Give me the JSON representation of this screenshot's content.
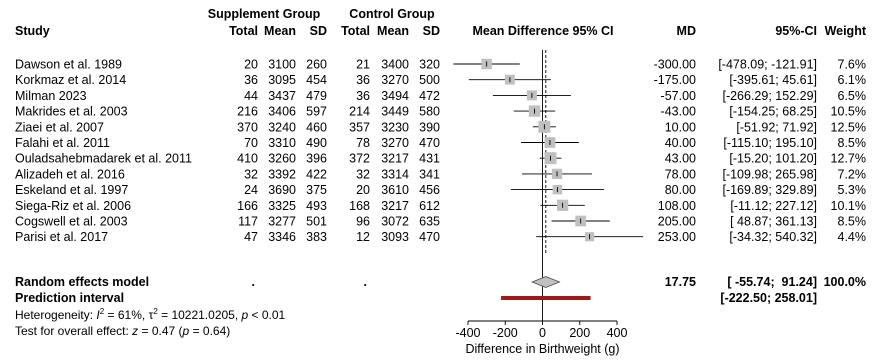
{
  "chart_data": {
    "type": "forest",
    "headers": {
      "study": "Study",
      "supplement_group": "Supplement Group",
      "control_group": "Control Group",
      "total": "Total",
      "mean": "Mean",
      "sd": "SD",
      "effect_col": "Mean Difference 95% CI",
      "md": "MD",
      "ci": "95%-CI",
      "weight": "Weight"
    },
    "studies": [
      {
        "study": "Dawson et al. 1989",
        "s_total": "20",
        "s_mean": "3100",
        "s_sd": "260",
        "c_total": "21",
        "c_mean": "3400",
        "c_sd": "320",
        "md_text": "-300.00",
        "ci_text": "[-478.09; -121.91]",
        "weight_text": "7.6%",
        "md": -300.0,
        "lo": -478.09,
        "hi": -121.91,
        "weight": 7.6
      },
      {
        "study": "Korkmaz et al. 2014",
        "s_total": "36",
        "s_mean": "3095",
        "s_sd": "454",
        "c_total": "36",
        "c_mean": "3270",
        "c_sd": "500",
        "md_text": "-175.00",
        "ci_text": "[-395.61; 45.61]",
        "weight_text": "6.1%",
        "md": -175.0,
        "lo": -395.61,
        "hi": 45.61,
        "weight": 6.1
      },
      {
        "study": "Milman 2023",
        "s_total": "44",
        "s_mean": "3437",
        "s_sd": "479",
        "c_total": "36",
        "c_mean": "3494",
        "c_sd": "472",
        "md_text": "-57.00",
        "ci_text": "[-266.29; 152.29]",
        "weight_text": "6.5%",
        "md": -57.0,
        "lo": -266.29,
        "hi": 152.29,
        "weight": 6.5
      },
      {
        "study": "Makrides et al. 2003",
        "s_total": "216",
        "s_mean": "3406",
        "s_sd": "597",
        "c_total": "214",
        "c_mean": "3449",
        "c_sd": "580",
        "md_text": "-43.00",
        "ci_text": "[-154.25; 68.25]",
        "weight_text": "10.5%",
        "md": -43.0,
        "lo": -154.25,
        "hi": 68.25,
        "weight": 10.5
      },
      {
        "study": "Ziaei et al. 2007",
        "s_total": "370",
        "s_mean": "3240",
        "s_sd": "460",
        "c_total": "357",
        "c_mean": "3230",
        "c_sd": "390",
        "md_text": "10.00",
        "ci_text": "[-51.92; 71.92]",
        "weight_text": "12.5%",
        "md": 10.0,
        "lo": -51.92,
        "hi": 71.92,
        "weight": 12.5
      },
      {
        "study": "Falahi et al. 2011",
        "s_total": "70",
        "s_mean": "3310",
        "s_sd": "490",
        "c_total": "78",
        "c_mean": "3270",
        "c_sd": "470",
        "md_text": "40.00",
        "ci_text": "[-115.10; 195.10]",
        "weight_text": "8.5%",
        "md": 40.0,
        "lo": -115.1,
        "hi": 195.1,
        "weight": 8.5
      },
      {
        "study": "Ouladsahebmadarek et al. 2011",
        "s_total": "410",
        "s_mean": "3260",
        "s_sd": "396",
        "c_total": "372",
        "c_mean": "3217",
        "c_sd": "431",
        "md_text": "43.00",
        "ci_text": "[-15.20; 101.20]",
        "weight_text": "12.7%",
        "md": 43.0,
        "lo": -15.2,
        "hi": 101.2,
        "weight": 12.7
      },
      {
        "study": "Alizadeh et al. 2016",
        "s_total": "32",
        "s_mean": "3392",
        "s_sd": "422",
        "c_total": "32",
        "c_mean": "3314",
        "c_sd": "341",
        "md_text": "78.00",
        "ci_text": "[-109.98; 265.98]",
        "weight_text": "7.2%",
        "md": 78.0,
        "lo": -109.98,
        "hi": 265.98,
        "weight": 7.2
      },
      {
        "study": "Eskeland et al. 1997",
        "s_total": "24",
        "s_mean": "3690",
        "s_sd": "375",
        "c_total": "20",
        "c_mean": "3610",
        "c_sd": "456",
        "md_text": "80.00",
        "ci_text": "[-169.89; 329.89]",
        "weight_text": "5.3%",
        "md": 80.0,
        "lo": -169.89,
        "hi": 329.89,
        "weight": 5.3
      },
      {
        "study": "Siega-Riz et al. 2006",
        "s_total": "166",
        "s_mean": "3325",
        "s_sd": "493",
        "c_total": "168",
        "c_mean": "3217",
        "c_sd": "612",
        "md_text": "108.00",
        "ci_text": "[-11.12; 227.12]",
        "weight_text": "10.1%",
        "md": 108.0,
        "lo": -11.12,
        "hi": 227.12,
        "weight": 10.1
      },
      {
        "study": "Cogswell et al. 2003",
        "s_total": "117",
        "s_mean": "3277",
        "s_sd": "501",
        "c_total": "96",
        "c_mean": "3072",
        "c_sd": "635",
        "md_text": "205.00",
        "ci_text": "[ 48.87; 361.13]",
        "weight_text": "8.5%",
        "md": 205.0,
        "lo": 48.87,
        "hi": 361.13,
        "weight": 8.5
      },
      {
        "study": "Parisi et al. 2017",
        "s_total": "47",
        "s_mean": "3346",
        "s_sd": "383",
        "c_total": "12",
        "c_mean": "3093",
        "c_sd": "470",
        "md_text": "253.00",
        "ci_text": "[-34.32; 540.32]",
        "weight_text": "4.4%",
        "md": 253.0,
        "lo": -34.32,
        "hi": 540.32,
        "weight": 4.4
      }
    ],
    "random_effects": {
      "label": "Random effects model",
      "s_total": ".",
      "c_total": ".",
      "md_text": "17.75",
      "ci_text": "[ -55.74;  91.24]",
      "weight_text": "100.0%",
      "md": 17.75,
      "lo": -55.74,
      "hi": 91.24
    },
    "prediction_interval": {
      "label": "Prediction interval",
      "ci_text": "[-222.50; 258.01]",
      "lo": -222.5,
      "hi": 258.01
    },
    "heterogeneity": {
      "prefix": "Heterogeneity: ",
      "i2_symbol": "I",
      "i2_value": " = 61%, ",
      "tau_symbol": "τ",
      "tau_value": " = 10221.0205, ",
      "p_symbol": "p",
      "p_value": " < 0.01"
    },
    "overall_effect": {
      "prefix": "Test for overall effect: ",
      "z_symbol": "z",
      "z_value": " = 0.47 (",
      "p_symbol": "p",
      "p_value": " = 0.64)"
    },
    "axis": {
      "xlabel": "Difference in Birthweight (g)",
      "xlim": [
        -400,
        400
      ],
      "ticks": [
        -400,
        -200,
        0,
        200,
        400
      ],
      "tick_labels": [
        "-400",
        "-200",
        "0",
        "200",
        "400"
      ],
      "reference_line": 0
    },
    "colors": {
      "box": "#c0c0c0",
      "line": "#000000",
      "diamond": "#c0c0c0",
      "prediction": "#a01818"
    }
  }
}
